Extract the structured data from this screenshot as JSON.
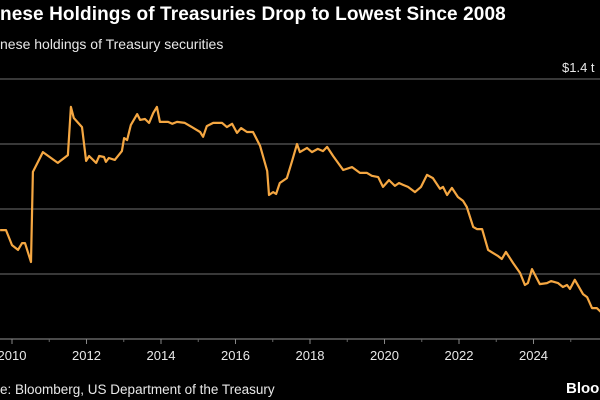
{
  "header": {
    "title": "nese Holdings of Treasuries Drop to Lowest Since 2008",
    "subtitle": "nese holdings of Treasury securities"
  },
  "footer": {
    "source": "e: Bloomberg, US Department of the Treasury",
    "brand": "Bloo"
  },
  "chart_data": {
    "type": "line",
    "title": "nese Holdings of Treasuries Drop to Lowest Since 2008",
    "subtitle": "nese holdings of Treasury securities",
    "xlabel": "",
    "ylabel": "",
    "xlim": [
      2009.68,
      2025.81
    ],
    "ylim": [
      0.6,
      1.4
    ],
    "y_unit_label": "$1.4 t",
    "y_gridlines": [
      0.8,
      1.0,
      1.2,
      1.4
    ],
    "grid": true,
    "x_ticks": [
      "2010",
      "2012",
      "2014",
      "2016",
      "2018",
      "2020",
      "2022",
      "2024"
    ],
    "x_minor_ticks": [
      2011,
      2013,
      2015,
      2017,
      2019,
      2021,
      2023,
      2025
    ],
    "line_color": "#f5a742",
    "background": "#000000",
    "series": [
      {
        "x": [
          2009.68,
          2009.84,
          2010.0,
          2010.16,
          2010.27,
          2010.35,
          2010.51,
          2010.56,
          2010.83,
          2011.23,
          2011.5,
          2011.58,
          2011.66,
          2011.88,
          2011.99,
          2012.07,
          2012.26,
          2012.34,
          2012.47,
          2012.52,
          2012.6,
          2012.76,
          2012.95,
          2013.01,
          2013.09,
          2013.19,
          2013.36,
          2013.44,
          2013.57,
          2013.68,
          2013.79,
          2013.89,
          2013.97,
          2014.19,
          2014.3,
          2014.43,
          2014.64,
          2014.83,
          2015.05,
          2015.13,
          2015.23,
          2015.4,
          2015.64,
          2015.77,
          2015.91,
          2016.04,
          2016.15,
          2016.31,
          2016.47,
          2016.66,
          2016.85,
          2016.9,
          2017.01,
          2017.09,
          2017.19,
          2017.38,
          2017.52,
          2017.65,
          2017.73,
          2017.92,
          2018.05,
          2018.21,
          2018.35,
          2018.46,
          2018.62,
          2018.89,
          2019.13,
          2019.34,
          2019.53,
          2019.66,
          2019.83,
          2019.96,
          2020.12,
          2020.28,
          2020.39,
          2020.5,
          2020.63,
          2020.82,
          2020.98,
          2021.14,
          2021.3,
          2021.49,
          2021.57,
          2021.68,
          2021.81,
          2021.97,
          2022.11,
          2022.21,
          2022.38,
          2022.48,
          2022.62,
          2022.78,
          2022.91,
          2023.05,
          2023.15,
          2023.26,
          2023.45,
          2023.64,
          2023.77,
          2023.85,
          2023.96,
          2024.17,
          2024.36,
          2024.47,
          2024.66,
          2024.79,
          2024.9,
          2024.98,
          2025.11,
          2025.33,
          2025.44,
          2025.57,
          2025.7,
          2025.81
        ],
        "values": [
          0.935,
          0.935,
          0.889,
          0.874,
          0.895,
          0.895,
          0.837,
          1.114,
          1.175,
          1.142,
          1.166,
          1.314,
          1.28,
          1.252,
          1.148,
          1.163,
          1.142,
          1.163,
          1.16,
          1.145,
          1.157,
          1.151,
          1.178,
          1.218,
          1.212,
          1.258,
          1.292,
          1.274,
          1.277,
          1.265,
          1.295,
          1.314,
          1.268,
          1.268,
          1.262,
          1.268,
          1.265,
          1.252,
          1.237,
          1.222,
          1.255,
          1.265,
          1.265,
          1.252,
          1.262,
          1.234,
          1.249,
          1.237,
          1.237,
          1.194,
          1.117,
          1.043,
          1.052,
          1.046,
          1.08,
          1.095,
          1.148,
          1.2,
          1.175,
          1.188,
          1.175,
          1.185,
          1.178,
          1.191,
          1.163,
          1.12,
          1.129,
          1.111,
          1.111,
          1.102,
          1.098,
          1.068,
          1.089,
          1.071,
          1.08,
          1.074,
          1.068,
          1.052,
          1.068,
          1.105,
          1.095,
          1.062,
          1.068,
          1.043,
          1.065,
          1.037,
          1.025,
          1.006,
          0.945,
          0.938,
          0.938,
          0.874,
          0.865,
          0.855,
          0.846,
          0.868,
          0.834,
          0.803,
          0.766,
          0.772,
          0.815,
          0.769,
          0.772,
          0.778,
          0.772,
          0.76,
          0.766,
          0.754,
          0.782,
          0.738,
          0.729,
          0.695,
          0.695,
          0.683
        ]
      }
    ]
  }
}
